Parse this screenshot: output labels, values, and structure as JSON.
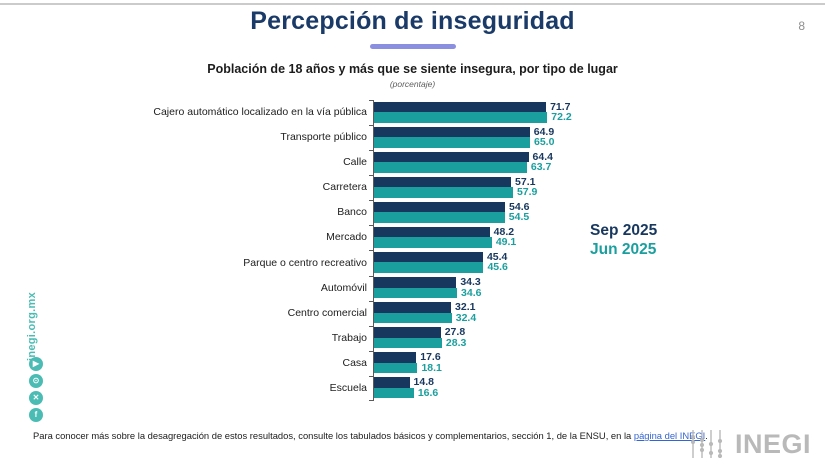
{
  "page": {
    "number": "8"
  },
  "header": {
    "title": "Percepción de inseguridad",
    "underline_color": "#8a8fe0",
    "title_color": "#1a3a68"
  },
  "chart": {
    "subtitle": "Población de 18 años y más que se siente insegura, por tipo de lugar",
    "unit_note": "(porcentaje)"
  },
  "chart_data": {
    "type": "bar",
    "orientation": "horizontal",
    "title": "Población de 18 años y más que se siente insegura, por tipo de lugar",
    "xlabel": "porcentaje",
    "xlim": [
      0,
      80
    ],
    "grid": false,
    "legend_position": "right",
    "categories": [
      "Cajero automático localizado en la vía pública",
      "Transporte público",
      "Calle",
      "Carretera",
      "Banco",
      "Mercado",
      "Parque o centro recreativo",
      "Automóvil",
      "Centro comercial",
      "Trabajo",
      "Casa",
      "Escuela"
    ],
    "series": [
      {
        "name": "Sep 2025",
        "color": "#17375e",
        "values": [
          71.7,
          64.9,
          64.4,
          57.1,
          54.6,
          48.2,
          45.4,
          34.3,
          32.1,
          27.8,
          17.6,
          14.8
        ],
        "labels": [
          "71.7",
          "64.9",
          "64.4",
          "57.1",
          "54.6",
          "48.2",
          "45.4",
          "34.3",
          "32.1",
          "27.8",
          "17.6",
          "14.8"
        ]
      },
      {
        "name": "Jun 2025",
        "color": "#1a9f9e",
        "values": [
          72.2,
          65.0,
          63.7,
          57.9,
          54.5,
          49.1,
          45.6,
          34.6,
          32.4,
          28.3,
          18.1,
          16.6
        ],
        "labels": [
          "72.2",
          "65.0",
          "63.7",
          "57.9",
          "54.5",
          "49.1",
          "45.6",
          "34.6",
          "32.4",
          "28.3",
          "18.1",
          "16.6"
        ]
      }
    ]
  },
  "sidebar": {
    "url": "inegi.org.mx",
    "accent_color": "#4bbcb4",
    "icons": [
      {
        "name": "youtube-icon",
        "glyph": "▶"
      },
      {
        "name": "instagram-icon",
        "glyph": "⊙"
      },
      {
        "name": "x-icon",
        "glyph": "✕"
      },
      {
        "name": "facebook-icon",
        "glyph": "f"
      }
    ]
  },
  "footer": {
    "text": "Para conocer más sobre la desagregación de estos resultados, consulte los tabulados básicos y complementarios, sección 1, de la ENSU, en la ",
    "link_text": "página del INEGI",
    "suffix": ".",
    "link_color": "#3465d0"
  },
  "logo": {
    "text": "INEGI",
    "color": "#b9b9b9"
  }
}
